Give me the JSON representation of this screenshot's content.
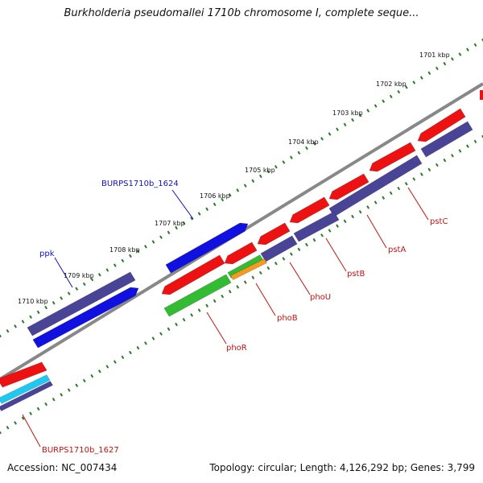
{
  "title": "Burkholderia pseudomallei 1710b chromosome I, complete seque...",
  "footer": {
    "accession": "Accession: NC_007434",
    "summary": "Topology: circular; Length: 4,126,292 bp; Genes: 3,799"
  },
  "colors": {
    "forward_gene": "#1010e0",
    "reverse_gene": "#ee1111",
    "cds_dark": "#4a4496",
    "rna_green": "#33bb33",
    "orange": "#f59a1e",
    "cyan": "#1ec8f0",
    "backbone": "#888888",
    "tick": "#2a7a2a"
  },
  "scale_labels": [
    "1701 kbp",
    "1702 kbp",
    "1703 kbp",
    "1704 kbp",
    "1705 kbp",
    "1706 kbp",
    "1707 kbp",
    "1708 kbp",
    "1709 kbp",
    "1710 kbp"
  ],
  "gene_labels": [
    {
      "text": "BURPS1710b_1624",
      "color": "#1010cc"
    },
    {
      "text": "ppk",
      "color": "#1010cc"
    },
    {
      "text": "pstC",
      "color": "#cc1111"
    },
    {
      "text": "pstA",
      "color": "#cc1111"
    },
    {
      "text": "pstB",
      "color": "#cc1111"
    },
    {
      "text": "phoU",
      "color": "#cc1111"
    },
    {
      "text": "phoB",
      "color": "#cc1111"
    },
    {
      "text": "phoR",
      "color": "#cc1111"
    },
    {
      "text": "BURPS1710b_1627",
      "color": "#cc1111"
    }
  ]
}
